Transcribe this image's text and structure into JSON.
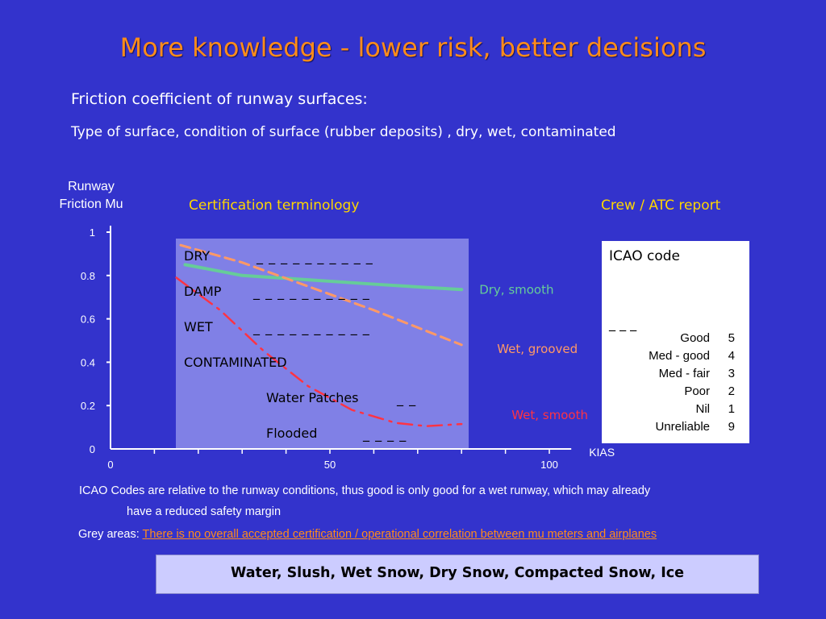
{
  "slide": {
    "title": "More knowledge - lower risk, better decisions",
    "subtitle1": "Friction coefficient of runway surfaces:",
    "subtitle2": "Type of surface, condition of surface (rubber deposits) , dry, wet, contaminated",
    "y_axis_label_line1": "Runway",
    "y_axis_label_line2": "Friction Mu",
    "certification_heading": "Certification terminology",
    "crew_heading": "Crew / ATC report"
  },
  "certification_box": {
    "rows": [
      {
        "label": "DRY",
        "dashes": "_ _ _ _ _ _ _ _ _ _"
      },
      {
        "label": "DAMP",
        "dashes": "_ _ _ _ _ _ _ _ _ _"
      },
      {
        "label": "WET",
        "dashes": "_ _ _ _ _ _ _ _ _ _"
      },
      {
        "label": "CONTAMINATED",
        "dashes": ""
      },
      {
        "label": "Water Patches",
        "dashes": "_ _"
      },
      {
        "label": "Flooded",
        "dashes": "_ _ _ _"
      }
    ]
  },
  "icao_box": {
    "title": "ICAO code",
    "dashes": "_ _ _",
    "rows": [
      {
        "name": "Good",
        "code": "5"
      },
      {
        "name": "Med - good",
        "code": "4"
      },
      {
        "name": "Med - fair",
        "code": "3"
      },
      {
        "name": "Poor",
        "code": "2"
      },
      {
        "name": "Nil",
        "code": "1"
      },
      {
        "name": "Unreliable",
        "code": "9"
      }
    ]
  },
  "notes": {
    "line1": "ICAO Codes are relative to the runway conditions, thus good is only good for a wet runway, which may already",
    "line2": "have  a reduced safety margin",
    "line3_prefix": "Grey areas: ",
    "line3_highlight": "There is no overall accepted certification / operational correlation between mu meters and airplanes"
  },
  "bottom_banner": "Water, Slush, Wet Snow, Dry Snow, Compacted Snow, Ice",
  "colors": {
    "background": "#3333cc",
    "title": "#ff8c1a",
    "heading": "#ffd700",
    "dry_smooth": "#66cc99",
    "wet_grooved": "#ff9966",
    "wet_smooth": "#ff3344",
    "box_fill": "#8080e6"
  },
  "chart_data": {
    "type": "line",
    "xlabel": "KIAS",
    "ylabel": "Runway Friction Mu",
    "xlim": [
      0,
      105
    ],
    "ylim": [
      0,
      1
    ],
    "x_ticks": [
      0,
      50,
      100
    ],
    "y_ticks": [
      0,
      0.2,
      0.4,
      0.6,
      0.8,
      1
    ],
    "y_tick_labels": [
      "0",
      "0.2",
      "0.4",
      "0.6",
      "0.8",
      "1"
    ],
    "series": [
      {
        "name": "Dry, smooth",
        "color": "#66cc99",
        "style": "solid",
        "x": [
          17,
          30,
          45,
          60,
          80
        ],
        "y": [
          0.85,
          0.8,
          0.78,
          0.76,
          0.735
        ]
      },
      {
        "name": "Wet, grooved",
        "color": "#ff9966",
        "style": "dashed",
        "x": [
          16,
          30,
          45,
          60,
          80
        ],
        "y": [
          0.94,
          0.86,
          0.75,
          0.64,
          0.48
        ]
      },
      {
        "name": "Wet, smooth",
        "color": "#ff3344",
        "style": "dashdot",
        "x": [
          15,
          25,
          35,
          45,
          55,
          65,
          72,
          80
        ],
        "y": [
          0.79,
          0.64,
          0.45,
          0.29,
          0.18,
          0.12,
          0.105,
          0.115
        ]
      }
    ]
  }
}
